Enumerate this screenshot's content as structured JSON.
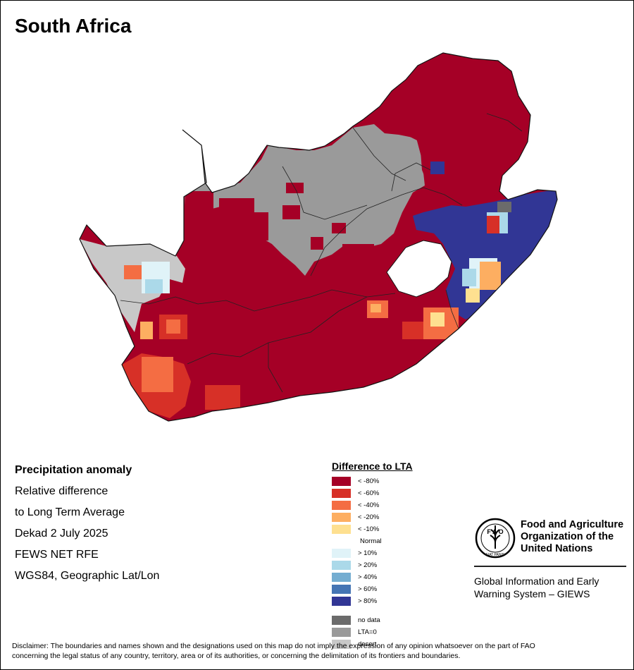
{
  "title": "South Africa",
  "info": {
    "heading": "Precipitation anomaly",
    "line1": "Relative difference",
    "line2": "to Long Term Average",
    "period": "Dekad 2 July 2025",
    "dataset": "FEWS NET RFE",
    "projection": "WGS84, Geographic Lat/Lon"
  },
  "legend": {
    "title": "Difference to LTA",
    "dry": [
      {
        "label": "< -80%",
        "color": "#a50026"
      },
      {
        "label": "< -60%",
        "color": "#d73027"
      },
      {
        "label": "< -40%",
        "color": "#f46d43"
      },
      {
        "label": "< -20%",
        "color": "#fdae61"
      },
      {
        "label": "< -10%",
        "color": "#fee090"
      }
    ],
    "normal_label": "Normal",
    "wet": [
      {
        "label": "> 10%",
        "color": "#e0f3f8"
      },
      {
        "label": "> 20%",
        "color": "#abd9e9"
      },
      {
        "label": "> 40%",
        "color": "#74add1"
      },
      {
        "label": "> 60%",
        "color": "#4575b4"
      },
      {
        "label": "> 80%",
        "color": "#313695"
      }
    ],
    "special": [
      {
        "label": "no data",
        "color": "#6b6b6b"
      },
      {
        "label": "LTA=0",
        "color": "#9a9a9a"
      },
      {
        "label": "desert",
        "color": "#c8c8c8"
      }
    ]
  },
  "fao": {
    "name_line1": "Food and Agriculture",
    "name_line2": "Organization of the",
    "name_line3": "United Nations",
    "logo_text": "FIAT PANIS",
    "system_line1": "Global Information and Early",
    "system_line2": "Warning System – GIEWS"
  },
  "disclaimer_line1": "Disclaimer: The boundaries and names shown and the designations used on this map do not imply the expression of any opinion whatsoever on the part of FAO",
  "disclaimer_line2": "concerning the legal status of any country, territory, area or of its authorities, or concerning the delimitation of its frontiers and boundaries."
}
